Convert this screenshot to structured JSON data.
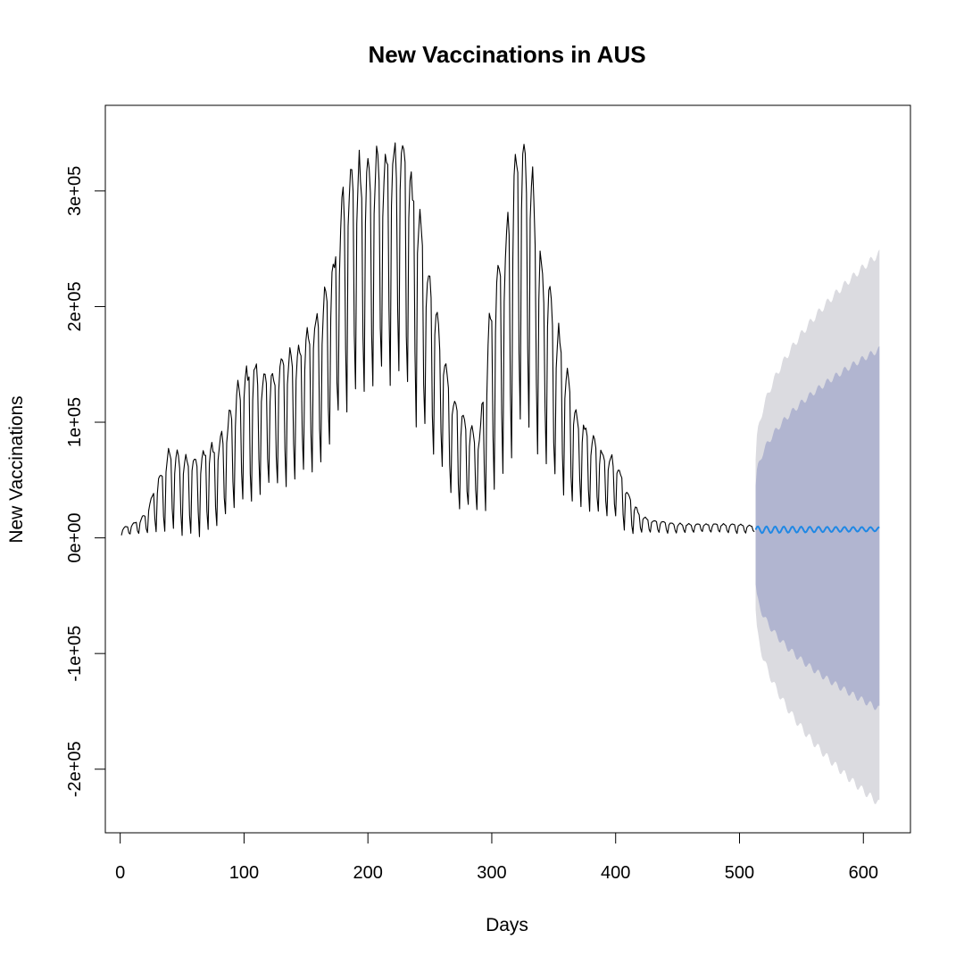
{
  "chart_data": {
    "type": "line",
    "title": "New Vaccinations in AUS",
    "xlabel": "Days",
    "ylabel": "New Vaccinations",
    "xlim": [
      -12,
      638
    ],
    "ylim": [
      -255000,
      374000
    ],
    "x_ticks": [
      0,
      100,
      200,
      300,
      400,
      500,
      600
    ],
    "x_tick_labels": [
      "0",
      "100",
      "200",
      "300",
      "400",
      "500",
      "600"
    ],
    "y_ticks": [
      -200000,
      -100000,
      0,
      100000,
      200000,
      300000
    ],
    "y_tick_labels": [
      "-2e+05",
      "-1e+05",
      "0e+00",
      "1e+05",
      "2e+05",
      "3e+05"
    ],
    "grid": false,
    "colors": {
      "history": "#000000",
      "forecast": "#1f88e5",
      "band_95": "#dbdbe0",
      "band_80": "#b1b5d0"
    },
    "series": [
      {
        "role": "history",
        "x_start": 1,
        "weekly_peak": [
          [
            1,
            8000
          ],
          [
            10,
            12000
          ],
          [
            20,
            20000
          ],
          [
            30,
            50000
          ],
          [
            40,
            78000
          ],
          [
            50,
            70000
          ],
          [
            60,
            72000
          ],
          [
            70,
            78000
          ],
          [
            80,
            85000
          ],
          [
            90,
            115000
          ],
          [
            100,
            145000
          ],
          [
            110,
            150000
          ],
          [
            120,
            140000
          ],
          [
            130,
            155000
          ],
          [
            140,
            165000
          ],
          [
            150,
            175000
          ],
          [
            160,
            200000
          ],
          [
            170,
            225000
          ],
          [
            180,
            300000
          ],
          [
            190,
            330000
          ],
          [
            200,
            325000
          ],
          [
            210,
            330000
          ],
          [
            220,
            340000
          ],
          [
            230,
            340000
          ],
          [
            240,
            290000
          ],
          [
            250,
            225000
          ],
          [
            260,
            170000
          ],
          [
            270,
            120000
          ],
          [
            280,
            100000
          ],
          [
            290,
            90000
          ],
          [
            300,
            210000
          ],
          [
            310,
            260000
          ],
          [
            320,
            330000
          ],
          [
            330,
            340000
          ],
          [
            340,
            240000
          ],
          [
            350,
            200000
          ],
          [
            360,
            150000
          ],
          [
            370,
            105000
          ],
          [
            380,
            90000
          ],
          [
            390,
            75000
          ],
          [
            400,
            70000
          ],
          [
            410,
            40000
          ],
          [
            420,
            20000
          ],
          [
            430,
            15000
          ],
          [
            445,
            13000
          ],
          [
            460,
            12000
          ],
          [
            480,
            12000
          ],
          [
            500,
            12000
          ],
          [
            512,
            10000
          ]
        ],
        "weekly_trough": [
          [
            1,
            2000
          ],
          [
            10,
            3000
          ],
          [
            20,
            4000
          ],
          [
            30,
            5000
          ],
          [
            40,
            4000
          ],
          [
            50,
            4000
          ],
          [
            60,
            3000
          ],
          [
            70,
            5000
          ],
          [
            80,
            10000
          ],
          [
            90,
            20000
          ],
          [
            100,
            30000
          ],
          [
            110,
            35000
          ],
          [
            120,
            40000
          ],
          [
            130,
            45000
          ],
          [
            140,
            50000
          ],
          [
            150,
            55000
          ],
          [
            160,
            65000
          ],
          [
            170,
            85000
          ],
          [
            180,
            105000
          ],
          [
            190,
            120000
          ],
          [
            200,
            125000
          ],
          [
            210,
            135000
          ],
          [
            220,
            140000
          ],
          [
            230,
            130000
          ],
          [
            240,
            100000
          ],
          [
            250,
            80000
          ],
          [
            260,
            55000
          ],
          [
            270,
            30000
          ],
          [
            280,
            25000
          ],
          [
            290,
            22000
          ],
          [
            300,
            28000
          ],
          [
            310,
            60000
          ],
          [
            320,
            90000
          ],
          [
            330,
            95000
          ],
          [
            340,
            70000
          ],
          [
            350,
            50000
          ],
          [
            360,
            35000
          ],
          [
            370,
            30000
          ],
          [
            380,
            25000
          ],
          [
            390,
            20000
          ],
          [
            400,
            15000
          ],
          [
            410,
            3000
          ],
          [
            420,
            4000
          ],
          [
            430,
            5000
          ],
          [
            445,
            4000
          ],
          [
            460,
            5000
          ],
          [
            480,
            5000
          ],
          [
            500,
            4000
          ],
          [
            512,
            5000
          ]
        ]
      },
      {
        "role": "forecast",
        "x_start": 513,
        "x_end": 613,
        "mean": 7000,
        "mean_end": 7500,
        "oscillation": 3000,
        "band_80": {
          "start": [
            -40000,
            45000
          ],
          "end": [
            -148000,
            163000
          ]
        },
        "band_95": {
          "start": [
            -62000,
            68000
          ],
          "end": [
            -230000,
            246000
          ]
        }
      }
    ]
  }
}
